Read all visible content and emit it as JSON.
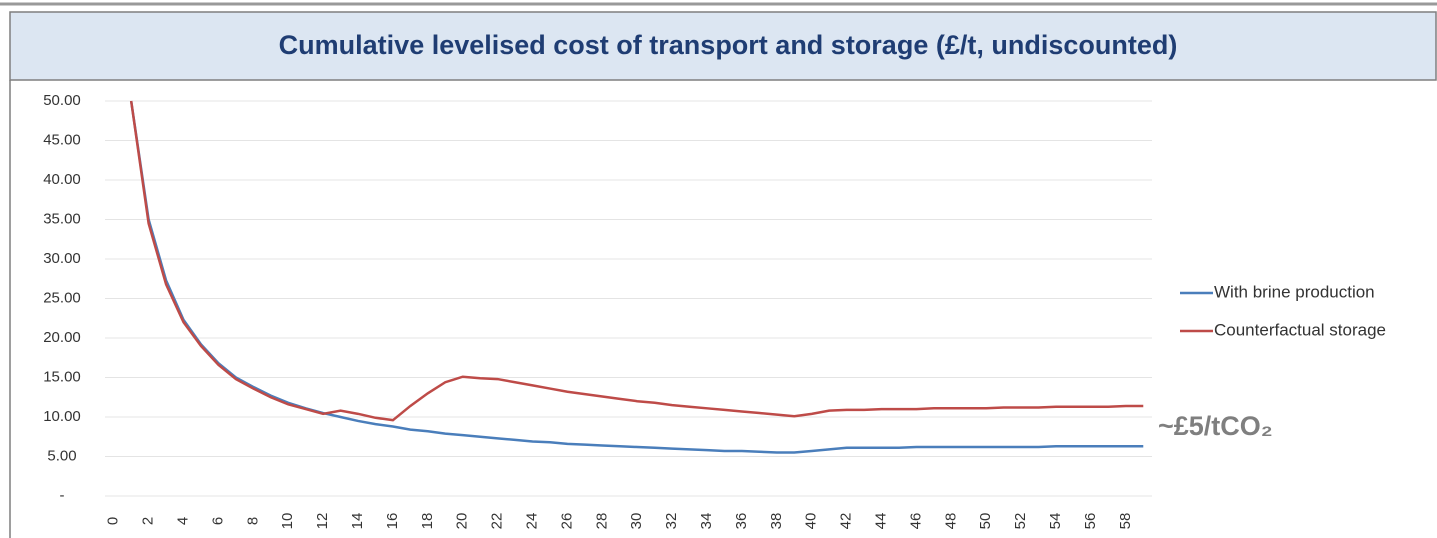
{
  "chart_data": {
    "type": "line",
    "title": "Cumulative levelised cost of transport and storage (£/t, undiscounted)",
    "x": [
      0,
      1,
      2,
      3,
      4,
      5,
      6,
      7,
      8,
      9,
      10,
      11,
      12,
      13,
      14,
      15,
      16,
      17,
      18,
      19,
      20,
      21,
      22,
      23,
      24,
      25,
      26,
      27,
      28,
      29,
      30,
      31,
      32,
      33,
      34,
      35,
      36,
      37,
      38,
      39,
      40,
      41,
      42,
      43,
      44,
      45,
      46,
      47,
      48,
      49,
      50,
      51,
      52,
      53,
      54,
      55,
      56,
      57,
      58,
      59
    ],
    "xlim": [
      -0.5,
      59.5
    ],
    "xticks": [
      0,
      2,
      4,
      6,
      8,
      10,
      12,
      14,
      16,
      18,
      20,
      22,
      24,
      26,
      28,
      30,
      32,
      34,
      36,
      38,
      40,
      42,
      44,
      46,
      48,
      50,
      52,
      54,
      56,
      58
    ],
    "ylim": [
      0,
      50
    ],
    "yticks": [
      {
        "value": 0,
        "label": "-"
      },
      {
        "value": 5,
        "label": "5.00"
      },
      {
        "value": 10,
        "label": "10.00"
      },
      {
        "value": 15,
        "label": "15.00"
      },
      {
        "value": 20,
        "label": "20.00"
      },
      {
        "value": 25,
        "label": "25.00"
      },
      {
        "value": 30,
        "label": "30.00"
      },
      {
        "value": 35,
        "label": "35.00"
      },
      {
        "value": 40,
        "label": "40.00"
      },
      {
        "value": 45,
        "label": "45.00"
      },
      {
        "value": 50,
        "label": "50.00"
      }
    ],
    "grid": true,
    "legend": "right",
    "series": [
      {
        "name": "With brine production",
        "color": "#4a7ebb",
        "values": [
          null,
          50,
          35,
          27.3,
          22.3,
          19.2,
          16.8,
          15.0,
          13.8,
          12.7,
          11.8,
          11.1,
          10.5,
          10.0,
          9.5,
          9.1,
          8.8,
          8.4,
          8.2,
          7.9,
          7.7,
          7.5,
          7.3,
          7.1,
          6.9,
          6.8,
          6.6,
          6.5,
          6.4,
          6.3,
          6.2,
          6.1,
          6.0,
          5.9,
          5.8,
          5.7,
          5.7,
          5.6,
          5.5,
          5.5,
          5.7,
          5.9,
          6.1,
          6.1,
          6.1,
          6.1,
          6.2,
          6.2,
          6.2,
          6.2,
          6.2,
          6.2,
          6.2,
          6.2,
          6.3,
          6.3,
          6.3,
          6.3,
          6.3,
          6.3
        ]
      },
      {
        "name": "Counterfactual storage",
        "color": "#be4b48",
        "values": [
          null,
          50,
          34.5,
          26.8,
          22.0,
          19.0,
          16.6,
          14.8,
          13.6,
          12.5,
          11.6,
          11.0,
          10.4,
          10.8,
          10.4,
          9.9,
          9.6,
          11.4,
          13.0,
          14.4,
          15.1,
          14.9,
          14.8,
          14.4,
          14.0,
          13.6,
          13.2,
          12.9,
          12.6,
          12.3,
          12.0,
          11.8,
          11.5,
          11.3,
          11.1,
          10.9,
          10.7,
          10.5,
          10.3,
          10.1,
          10.4,
          10.8,
          10.9,
          10.9,
          11.0,
          11.0,
          11.0,
          11.1,
          11.1,
          11.1,
          11.1,
          11.2,
          11.2,
          11.2,
          11.3,
          11.3,
          11.3,
          11.3,
          11.4,
          11.4
        ]
      }
    ],
    "annotation": "~£5/tCO₂"
  }
}
